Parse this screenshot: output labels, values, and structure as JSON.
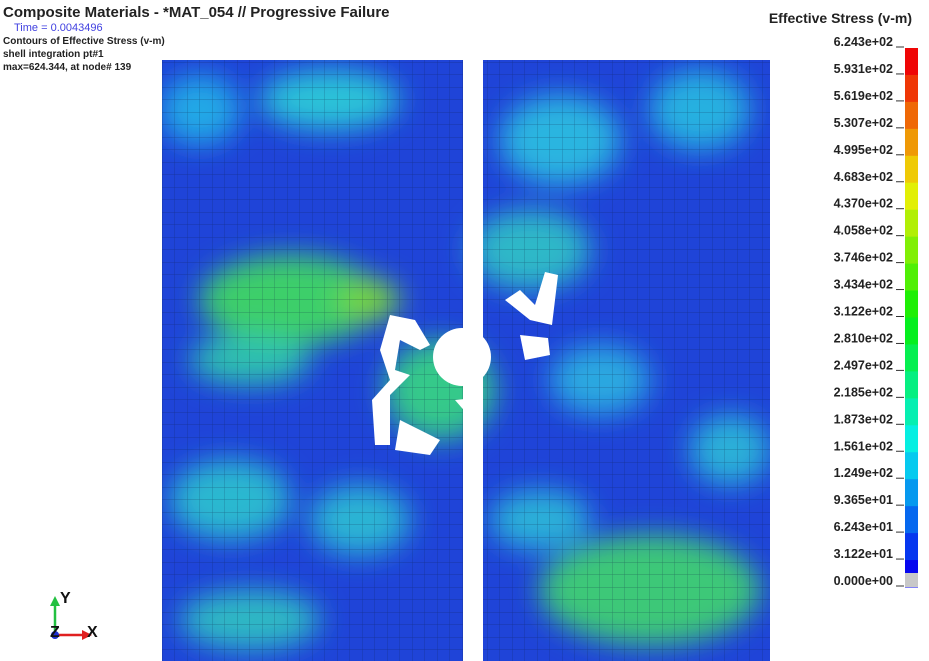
{
  "header": {
    "title": "Composite Materials - *MAT_054 // Progressive Failure",
    "time_label": "Time =  0.0043496",
    "lines": [
      "Contours of Effective Stress (v-m)",
      "shell integration pt#1",
      " max=624.344, at node# 139"
    ]
  },
  "legend": {
    "title": "Effective Stress (v-m)",
    "labels": [
      "6.243e+02",
      "5.931e+02",
      "5.619e+02",
      "5.307e+02",
      "4.995e+02",
      "4.683e+02",
      "4.370e+02",
      "4.058e+02",
      "3.746e+02",
      "3.434e+02",
      "3.122e+02",
      "2.810e+02",
      "2.497e+02",
      "2.185e+02",
      "1.873e+02",
      "1.561e+02",
      "1.249e+02",
      "9.365e+01",
      "6.243e+01",
      "3.122e+01",
      "0.000e+00"
    ]
  },
  "triad": {
    "y": "Y",
    "z": "Z",
    "x": "X"
  }
}
